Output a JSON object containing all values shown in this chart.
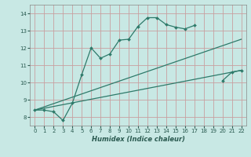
{
  "xlabel": "Humidex (Indice chaleur)",
  "bg_color": "#c8e8e4",
  "grid_color": "#c8a0a0",
  "line_color": "#2e7a6a",
  "ylim": [
    7.5,
    14.5
  ],
  "xlim": [
    -0.5,
    22.5
  ],
  "yticks": [
    8,
    9,
    10,
    11,
    12,
    13,
    14
  ],
  "xticks": [
    0,
    1,
    2,
    3,
    4,
    5,
    6,
    7,
    8,
    9,
    10,
    11,
    12,
    13,
    14,
    15,
    16,
    17,
    18,
    19,
    20,
    21,
    22
  ],
  "line1_x": [
    0,
    1,
    2,
    3,
    4,
    5,
    6,
    7,
    8,
    9,
    10,
    11,
    12,
    13,
    14,
    15,
    16,
    17
  ],
  "line1_y": [
    8.4,
    8.4,
    8.3,
    7.8,
    8.8,
    10.45,
    12.0,
    11.4,
    11.65,
    12.45,
    12.5,
    13.25,
    13.75,
    13.75,
    13.35,
    13.2,
    13.1,
    13.3
  ],
  "line2_x": [
    0,
    22
  ],
  "line2_y": [
    8.4,
    12.5
  ],
  "line3_x": [
    0,
    22
  ],
  "line3_y": [
    8.4,
    10.7
  ],
  "line4_x": [
    20,
    21,
    22
  ],
  "line4_y": [
    10.1,
    10.6,
    10.7
  ]
}
